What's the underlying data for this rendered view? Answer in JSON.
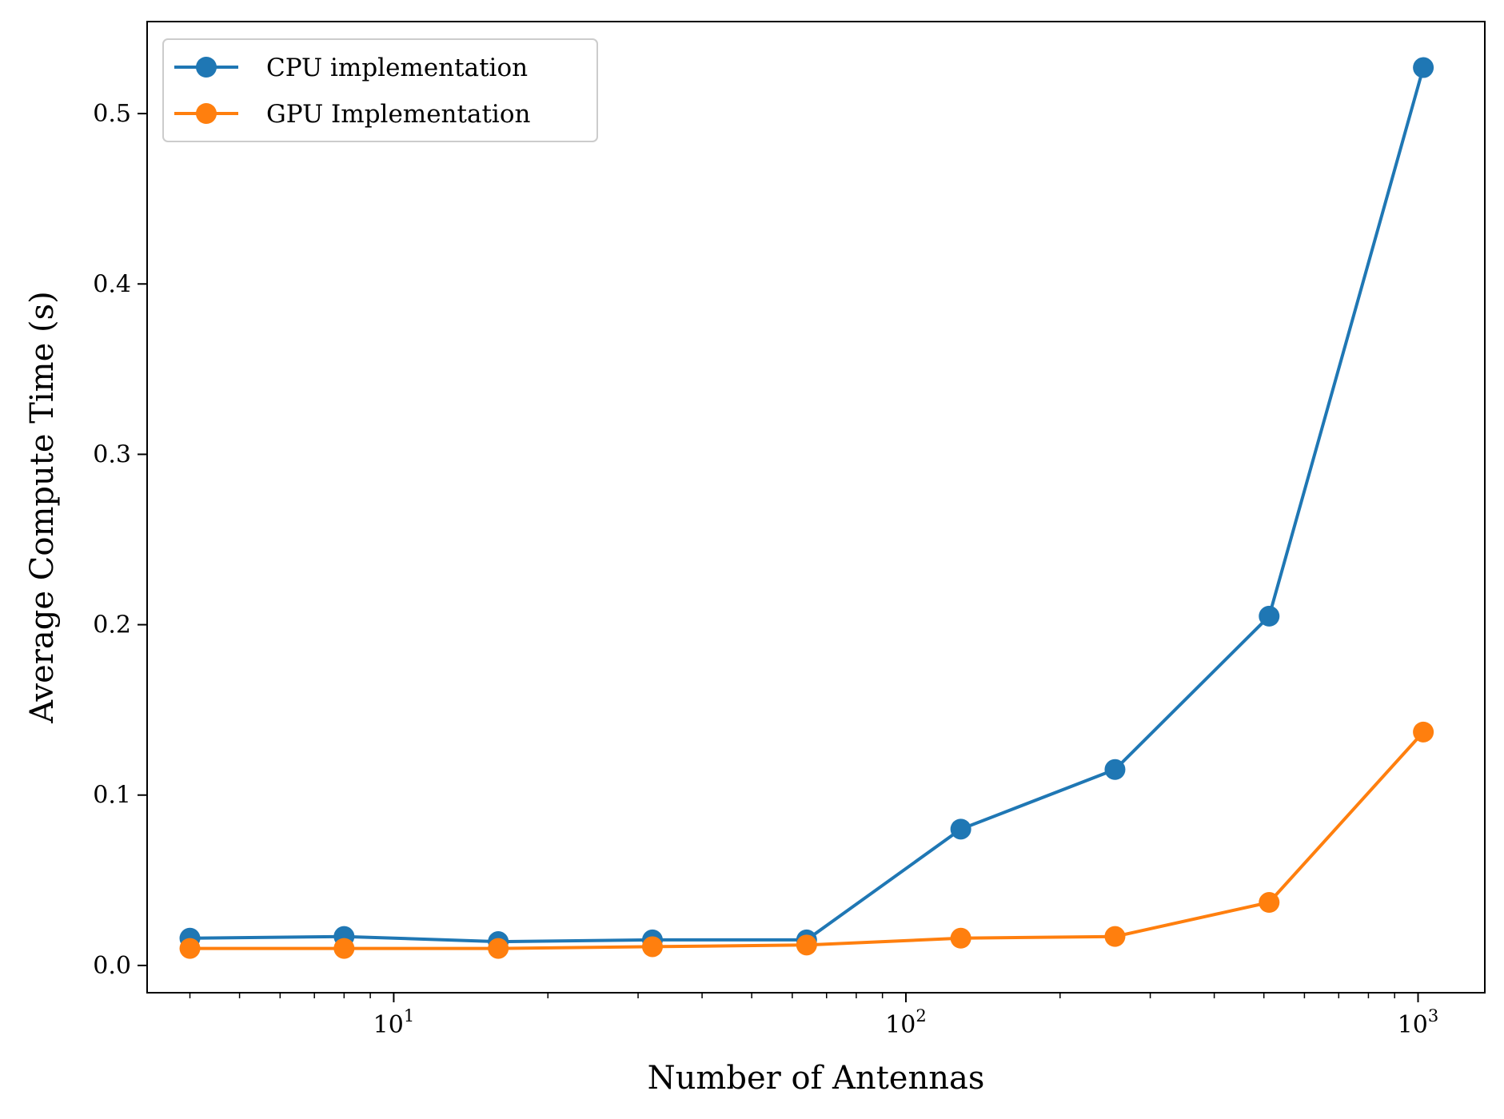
{
  "chart_data": {
    "type": "line",
    "title": "",
    "xlabel": "Number of Antennas",
    "ylabel": "Average Compute Time (s)",
    "x_scale": "log",
    "xlim": [
      3.3,
      1350
    ],
    "ylim": [
      -0.016,
      0.554
    ],
    "x_major_ticks": [
      {
        "value": 10,
        "base": "10",
        "exp": "1"
      },
      {
        "value": 100,
        "base": "10",
        "exp": "2"
      },
      {
        "value": 1000,
        "base": "10",
        "exp": "3"
      }
    ],
    "y_ticks": [
      {
        "value": 0.0,
        "label": "0.0"
      },
      {
        "value": 0.1,
        "label": "0.1"
      },
      {
        "value": 0.2,
        "label": "0.2"
      },
      {
        "value": 0.3,
        "label": "0.3"
      },
      {
        "value": 0.4,
        "label": "0.4"
      },
      {
        "value": 0.5,
        "label": "0.5"
      }
    ],
    "grid": false,
    "legend_position": "top-left",
    "x": [
      4,
      8,
      16,
      32,
      64,
      128,
      256,
      512,
      1024
    ],
    "series": [
      {
        "name": "CPU implementation",
        "color": "#1f77b4",
        "marker": "circle",
        "values": [
          0.016,
          0.017,
          0.014,
          0.015,
          0.015,
          0.08,
          0.115,
          0.205,
          0.527
        ]
      },
      {
        "name": "GPU Implementation",
        "color": "#ff7f0e",
        "marker": "circle",
        "values": [
          0.01,
          0.01,
          0.01,
          0.011,
          0.012,
          0.016,
          0.017,
          0.037,
          0.137
        ]
      }
    ]
  }
}
